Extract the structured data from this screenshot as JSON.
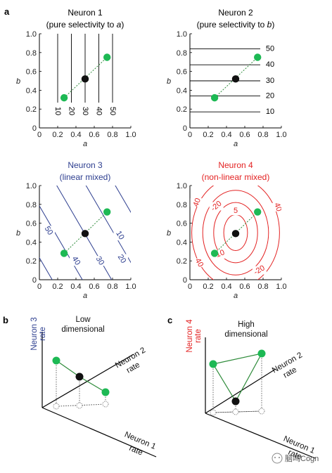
{
  "panel_labels": {
    "a": "a",
    "b": "b",
    "c": "c"
  },
  "axes": {
    "ticks": [
      "0",
      "0.2",
      "0.4",
      "0.6",
      "0.8",
      "1.0"
    ],
    "xlabel": "a",
    "ylabel": "b"
  },
  "colors": {
    "green": "#1db954",
    "black": "#111111",
    "blue": "#2d3e8f",
    "red": "#e32222",
    "line": "#000000",
    "green_line": "#2e8b3a"
  },
  "chart_data": [
    {
      "type": "contour",
      "title": "Neuron 1",
      "subtitle_pre": "(pure selectivity to ",
      "subtitle_var": "a",
      "subtitle_post": ")",
      "xlabel": "a",
      "ylabel": "b",
      "xlim": [
        0,
        1
      ],
      "ylim": [
        0,
        1
      ],
      "levels": [
        "10",
        "20",
        "30",
        "40",
        "50"
      ],
      "level_x": [
        0.2,
        0.35,
        0.5,
        0.65,
        0.8
      ],
      "points": [
        {
          "x": 0.27,
          "y": 0.32
        },
        {
          "x": 0.5,
          "y": 0.52
        },
        {
          "x": 0.74,
          "y": 0.75
        }
      ]
    },
    {
      "type": "contour",
      "title": "Neuron 2",
      "subtitle_pre": "(pure selectivity to ",
      "subtitle_var": "b",
      "subtitle_post": ")",
      "xlabel": "a",
      "ylabel": "b",
      "xlim": [
        0,
        1
      ],
      "ylim": [
        0,
        1
      ],
      "levels": [
        "10",
        "20",
        "30",
        "40",
        "50"
      ],
      "level_y": [
        0.17,
        0.34,
        0.5,
        0.67,
        0.84
      ],
      "points": [
        {
          "x": 0.27,
          "y": 0.32
        },
        {
          "x": 0.5,
          "y": 0.52
        },
        {
          "x": 0.74,
          "y": 0.75
        }
      ]
    },
    {
      "type": "contour",
      "title": "Neuron 3",
      "subtitle": "(linear mixed)",
      "xlabel": "a",
      "ylabel": "b",
      "xlim": [
        0,
        1
      ],
      "ylim": [
        0,
        1
      ],
      "levels": [
        "10",
        "20",
        "30",
        "40",
        "50"
      ],
      "points": [
        {
          "x": 0.27,
          "y": 0.28
        },
        {
          "x": 0.5,
          "y": 0.49
        },
        {
          "x": 0.74,
          "y": 0.72
        }
      ]
    },
    {
      "type": "contour",
      "title": "Neuron 4",
      "subtitle": "(non-linear mixed)",
      "xlabel": "a",
      "ylabel": "b",
      "xlim": [
        0,
        1
      ],
      "ylim": [
        0,
        1
      ],
      "center": {
        "x": 0.5,
        "y": 0.5
      },
      "levels": [
        "5",
        "10",
        "20",
        "40"
      ],
      "label_texts": [
        "5",
        "-10",
        "-20",
        "40",
        "40",
        "-20",
        "40"
      ],
      "points": [
        {
          "x": 0.27,
          "y": 0.28
        },
        {
          "x": 0.5,
          "y": 0.49
        },
        {
          "x": 0.74,
          "y": 0.72
        }
      ]
    }
  ],
  "schematic_b": {
    "title": [
      "Low",
      "dimensional"
    ],
    "z_axis": [
      "Neuron 3",
      "rate"
    ],
    "y_axis": [
      "Neuron 2",
      "rate"
    ],
    "x_axis": [
      "Neuron 1",
      "rate"
    ]
  },
  "schematic_c": {
    "title": [
      "High",
      "dimensional"
    ],
    "z_axis": [
      "Neuron 4",
      "rate"
    ],
    "y_axis": [
      "Neuron 2",
      "rate"
    ],
    "x_axis": [
      "Neuron 1",
      "rate"
    ]
  },
  "watermark": "脑鸣Cogn"
}
